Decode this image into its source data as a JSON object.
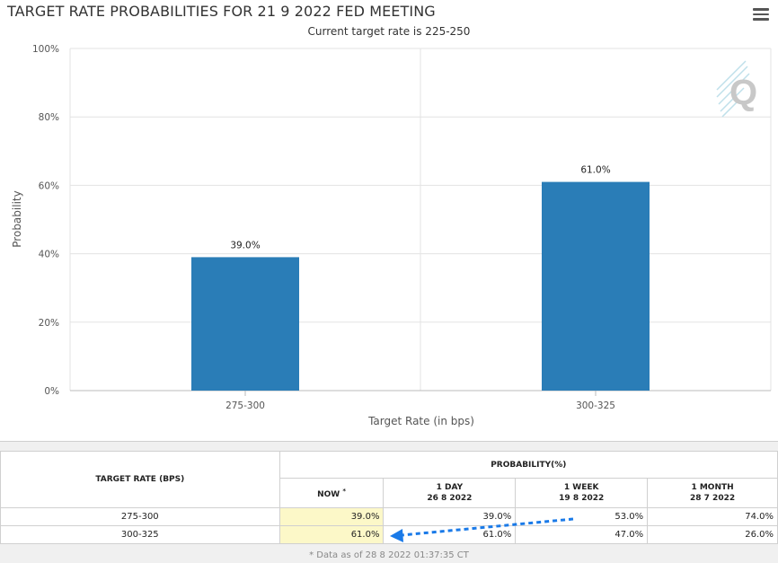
{
  "header": {
    "title": "TARGET RATE PROBABILITIES FOR 21 9 2022 FED MEETING",
    "subtitle": "Current target rate is 225-250",
    "menu_icon": "hamburger-menu-icon",
    "logo_icon": "q-logo-icon",
    "logo_text": "Q"
  },
  "chart_data": {
    "type": "bar",
    "title": "TARGET RATE PROBABILITIES FOR 21 9 2022 FED MEETING",
    "subtitle": "Current target rate is 225-250",
    "categories": [
      "275-300",
      "300-325"
    ],
    "values": [
      39.0,
      61.0
    ],
    "data_labels": [
      "39.0%",
      "61.0%"
    ],
    "xlabel": "Target Rate (in bps)",
    "ylabel": "Probability",
    "ylim": [
      0,
      100
    ],
    "yticks": [
      "0%",
      "20%",
      "40%",
      "60%",
      "80%",
      "100%"
    ],
    "ytick_values": [
      0,
      20,
      40,
      60,
      80,
      100
    ],
    "grid": true,
    "bar_color": "#2a7db7"
  },
  "table": {
    "rate_header": "TARGET RATE (BPS)",
    "prob_header": "PROBABILITY(%)",
    "columns": [
      {
        "label": "NOW",
        "marker": "*",
        "date": ""
      },
      {
        "label": "1 DAY",
        "marker": "",
        "date": "26 8 2022"
      },
      {
        "label": "1 WEEK",
        "marker": "",
        "date": "19 8 2022"
      },
      {
        "label": "1 MONTH",
        "marker": "",
        "date": "28 7 2022"
      }
    ],
    "rows": [
      {
        "rate": "275-300",
        "values": [
          "39.0%",
          "39.0%",
          "53.0%",
          "74.0%"
        ]
      },
      {
        "rate": "300-325",
        "values": [
          "61.0%",
          "61.0%",
          "47.0%",
          "26.0%"
        ]
      }
    ],
    "footnote": "* Data as of 28 8 2022 01:37:35 CT",
    "highlight_color": "#fcf8c8",
    "arrow_color": "#1a7ae8"
  }
}
